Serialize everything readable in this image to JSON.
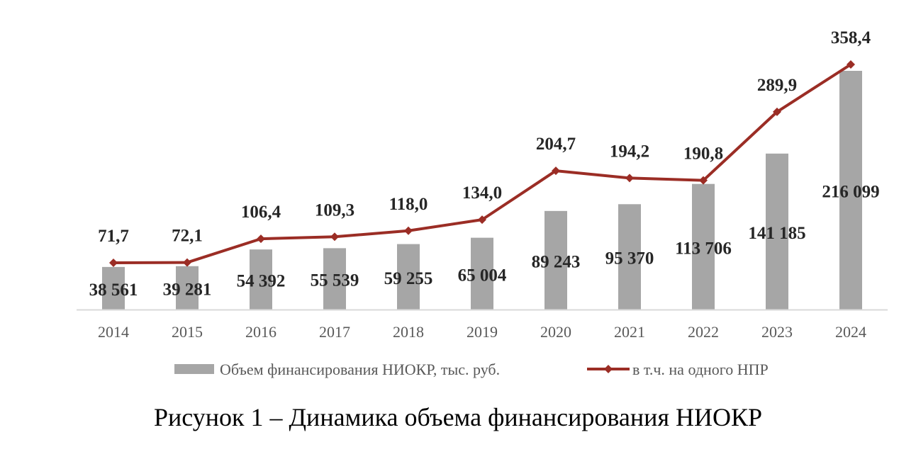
{
  "chart_data": {
    "type": "bar",
    "title": "",
    "categories": [
      "2014",
      "2015",
      "2016",
      "2017",
      "2018",
      "2019",
      "2020",
      "2021",
      "2022",
      "2023",
      "2024"
    ],
    "series": [
      {
        "name": "Объем финансирования НИОКР, тыс. руб.",
        "type": "bar",
        "axis": "primary",
        "values": [
          38561,
          39281,
          54392,
          55539,
          59255,
          65004,
          89243,
          95370,
          113706,
          141185,
          216099
        ],
        "labels": [
          "38 561",
          "39 281",
          "54 392",
          "55 539",
          "59 255",
          "65 004",
          "89 243",
          "95 370",
          "113 706",
          "141 185",
          "216 099"
        ]
      },
      {
        "name": "в т.ч. на одного НПР",
        "type": "line",
        "axis": "secondary",
        "values": [
          71.7,
          72.1,
          106.4,
          109.3,
          118.0,
          134.0,
          204.7,
          194.2,
          190.8,
          289.9,
          358.4
        ],
        "labels": [
          "71,7",
          "72,1",
          "106,4",
          "109,3",
          "118,0",
          "134,0",
          "204,7",
          "194,2",
          "190,8",
          "289,9",
          "358,4"
        ]
      }
    ],
    "primary_ylim": [
      0,
      216099
    ],
    "secondary_ylim": [
      0,
      380
    ],
    "legend_position": "bottom",
    "grid": false,
    "colors": {
      "bars": "#a6a6a6",
      "line": "#9b2d25",
      "axis": "#d9d9d9"
    }
  },
  "caption": "Рисунок 1 – Динамика объема финансирования НИОКР"
}
